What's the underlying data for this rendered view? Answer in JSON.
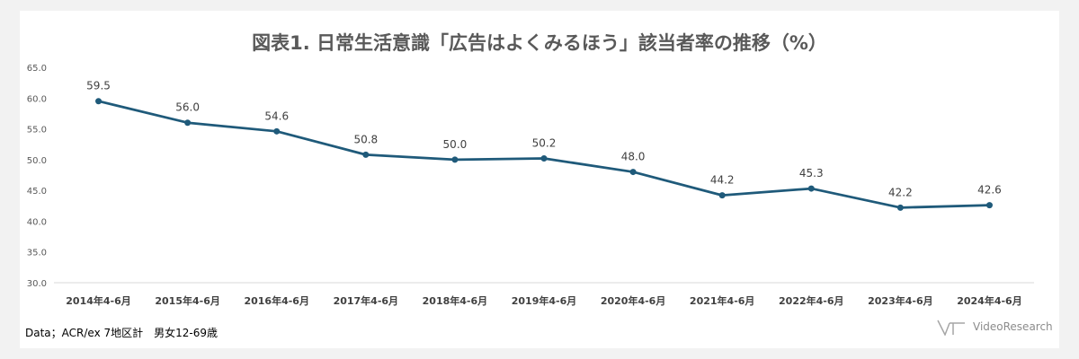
{
  "chart_data": {
    "type": "line",
    "title": "図表1. 日常生活意識「広告はよくみるほう」該当者率の推移（%）",
    "categories": [
      "2014年4-6月",
      "2015年4-6月",
      "2016年4-6月",
      "2017年4-6月",
      "2018年4-6月",
      "2019年4-6月",
      "2020年4-6月",
      "2021年4-6月",
      "2022年4-6月",
      "2023年4-6月",
      "2024年4-6月"
    ],
    "values": [
      59.5,
      56.0,
      54.6,
      50.8,
      50.0,
      50.2,
      48.0,
      44.2,
      45.3,
      42.2,
      42.6
    ],
    "value_labels": [
      "59.5",
      "56.0",
      "54.6",
      "50.8",
      "50.0",
      "50.2",
      "48.0",
      "44.2",
      "45.3",
      "42.2",
      "42.6"
    ],
    "ylim": [
      30,
      65
    ],
    "yticks": [
      "30.0",
      "35.0",
      "40.0",
      "45.0",
      "50.0",
      "55.0",
      "60.0",
      "65.0"
    ],
    "grid": false,
    "line_color": "#1f5a7a",
    "marker_color": "#1f5a7a"
  },
  "source": "Data；ACR/ex 7地区計　男女12-69歳",
  "logo": {
    "text": "VideoResearch"
  }
}
